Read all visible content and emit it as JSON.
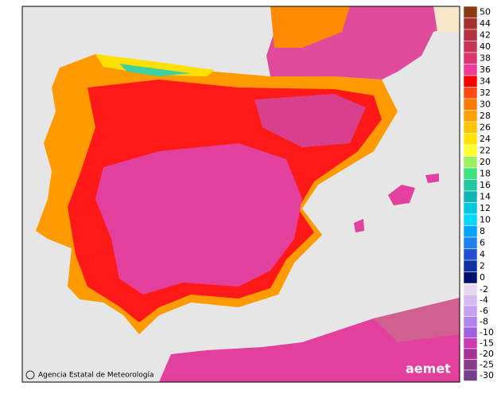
{
  "credit": "Agencia Estatal de Meteorología",
  "logo": "aemet",
  "legend": {
    "warm": [
      {
        "label": "50",
        "color": "#8b3a12"
      },
      {
        "label": "44",
        "color": "#a3322c"
      },
      {
        "label": "42",
        "color": "#b53040"
      },
      {
        "label": "40",
        "color": "#c63456"
      },
      {
        "label": "38",
        "color": "#d8386c"
      },
      {
        "label": "36",
        "color": "#f03c96"
      },
      {
        "label": "34",
        "color": "#ff0000"
      },
      {
        "label": "32",
        "color": "#ff4a10"
      },
      {
        "label": "30",
        "color": "#ff7a00"
      },
      {
        "label": "28",
        "color": "#ffa000"
      },
      {
        "label": "26",
        "color": "#ffc400"
      },
      {
        "label": "24",
        "color": "#ffe400"
      },
      {
        "label": "22",
        "color": "#ffff30"
      },
      {
        "label": "20",
        "color": "#9cf060"
      },
      {
        "label": "18",
        "color": "#40e080"
      },
      {
        "label": "16",
        "color": "#20c8a0"
      },
      {
        "label": "14",
        "color": "#10b4b4"
      },
      {
        "label": "12",
        "color": "#00c8e0"
      },
      {
        "label": "10",
        "color": "#00d8ff"
      },
      {
        "label": "8",
        "color": "#00a4ff"
      },
      {
        "label": "6",
        "color": "#2080f0"
      },
      {
        "label": "4",
        "color": "#2050d0"
      },
      {
        "label": "2",
        "color": "#1030a0"
      },
      {
        "label": "0",
        "color": "#001070"
      }
    ],
    "cold": [
      {
        "label": "-2",
        "color": "#e4d8f4"
      },
      {
        "label": "-4",
        "color": "#d4bcf2"
      },
      {
        "label": "-6",
        "color": "#c4a2f0"
      },
      {
        "label": "-8",
        "color": "#b084f0"
      },
      {
        "label": "-10",
        "color": "#a060e4"
      },
      {
        "label": "-15",
        "color": "#c83cb4"
      },
      {
        "label": "-20",
        "color": "#a83294"
      },
      {
        "label": "-25",
        "color": "#8a3c86"
      },
      {
        "label": "-30",
        "color": "#74408e"
      }
    ]
  }
}
